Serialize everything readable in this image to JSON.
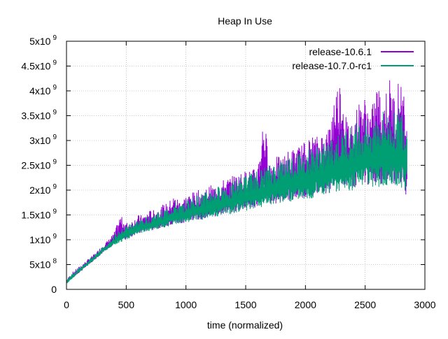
{
  "chart_data": {
    "type": "line",
    "title": "Heap In Use",
    "xlabel": "time (normalized)",
    "ylabel": "",
    "xlim": [
      0,
      3000
    ],
    "ylim": [
      0,
      5000000000
    ],
    "grid": true,
    "legend_position": "top-right",
    "x_ticks": [
      {
        "value": 0,
        "label": "0"
      },
      {
        "value": 500,
        "label": "500"
      },
      {
        "value": 1000,
        "label": "1000"
      },
      {
        "value": 1500,
        "label": "1500"
      },
      {
        "value": 2000,
        "label": "2000"
      },
      {
        "value": 2500,
        "label": "2500"
      },
      {
        "value": 3000,
        "label": "3000"
      }
    ],
    "y_ticks": [
      {
        "value": 0,
        "base": "0",
        "exp": ""
      },
      {
        "value": 500000000,
        "base": "5x10",
        "exp": "8"
      },
      {
        "value": 1000000000,
        "base": "1x10",
        "exp": "9"
      },
      {
        "value": 1500000000,
        "base": "1.5x10",
        "exp": "9"
      },
      {
        "value": 2000000000,
        "base": "2x10",
        "exp": "9"
      },
      {
        "value": 2500000000,
        "base": "2.5x10",
        "exp": "9"
      },
      {
        "value": 3000000000,
        "base": "3x10",
        "exp": "9"
      },
      {
        "value": 3500000000,
        "base": "3.5x10",
        "exp": "9"
      },
      {
        "value": 4000000000,
        "base": "4x10",
        "exp": "9"
      },
      {
        "value": 4500000000,
        "base": "4.5x10",
        "exp": "9"
      },
      {
        "value": 5000000000,
        "base": "5x10",
        "exp": "9"
      }
    ],
    "series": [
      {
        "name": "release-10.6.1",
        "color": "#9400d3",
        "x": [
          0,
          50,
          100,
          150,
          200,
          250,
          300,
          350,
          400,
          450,
          500,
          550,
          600,
          650,
          700,
          750,
          800,
          850,
          900,
          950,
          1000,
          1050,
          1100,
          1150,
          1200,
          1250,
          1300,
          1350,
          1400,
          1450,
          1500,
          1550,
          1600,
          1650,
          1700,
          1750,
          1800,
          1850,
          1900,
          1950,
          2000,
          2050,
          2100,
          2150,
          2200,
          2250,
          2300,
          2350,
          2400,
          2450,
          2500,
          2550,
          2600,
          2650,
          2700,
          2750,
          2800,
          2850
        ],
        "y_low": [
          100000000,
          200000000,
          300000000,
          400000000,
          500000000,
          600000000,
          700000000,
          800000000,
          850000000,
          900000000,
          950000000,
          1000000000,
          1050000000,
          1100000000,
          1100000000,
          1150000000,
          1150000000,
          1200000000,
          1200000000,
          1250000000,
          1250000000,
          1300000000,
          1300000000,
          1300000000,
          1350000000,
          1350000000,
          1400000000,
          1400000000,
          1400000000,
          1450000000,
          1450000000,
          1500000000,
          1500000000,
          1500000000,
          1550000000,
          1550000000,
          1600000000,
          1600000000,
          1600000000,
          1650000000,
          1650000000,
          1650000000,
          1700000000,
          1700000000,
          1700000000,
          1700000000,
          1750000000,
          1750000000,
          1750000000,
          1750000000,
          1800000000,
          1800000000,
          1800000000,
          1800000000,
          1850000000,
          1800000000,
          1700000000,
          1600000000
        ],
        "y_high": [
          200000000,
          350000000,
          450000000,
          550000000,
          650000000,
          750000000,
          900000000,
          1000000000,
          1150000000,
          1500000000,
          1350000000,
          1400000000,
          1500000000,
          1500000000,
          1600000000,
          1600000000,
          1700000000,
          1750000000,
          1900000000,
          1800000000,
          1900000000,
          1950000000,
          2000000000,
          2000000000,
          2100000000,
          2100000000,
          2200000000,
          2250000000,
          2300000000,
          2350000000,
          2400000000,
          2400000000,
          2500000000,
          3550000000,
          2600000000,
          2700000000,
          2650000000,
          2800000000,
          2850000000,
          2900000000,
          3000000000,
          3100000000,
          3100000000,
          3200000000,
          3300000000,
          4100000000,
          4300000000,
          3400000000,
          3500000000,
          3800000000,
          3900000000,
          3600000000,
          4200000000,
          3800000000,
          4300000000,
          3900000000,
          4500000000,
          3300000000
        ]
      },
      {
        "name": "release-10.7.0-rc1",
        "color": "#009e73",
        "x": [
          0,
          50,
          100,
          150,
          200,
          250,
          300,
          350,
          400,
          450,
          500,
          550,
          600,
          650,
          700,
          750,
          800,
          850,
          900,
          950,
          1000,
          1050,
          1100,
          1150,
          1200,
          1250,
          1300,
          1350,
          1400,
          1450,
          1500,
          1550,
          1600,
          1650,
          1700,
          1750,
          1800,
          1850,
          1900,
          1950,
          2000,
          2050,
          2100,
          2150,
          2200,
          2250,
          2300,
          2350,
          2400,
          2450,
          2500,
          2550,
          2600,
          2650,
          2700,
          2750,
          2800,
          2850
        ],
        "y_low": [
          100000000,
          200000000,
          300000000,
          400000000,
          500000000,
          600000000,
          700000000,
          800000000,
          850000000,
          900000000,
          950000000,
          1000000000,
          1050000000,
          1100000000,
          1100000000,
          1150000000,
          1150000000,
          1200000000,
          1200000000,
          1250000000,
          1250000000,
          1300000000,
          1300000000,
          1300000000,
          1350000000,
          1350000000,
          1400000000,
          1400000000,
          1400000000,
          1450000000,
          1450000000,
          1500000000,
          1500000000,
          1500000000,
          1550000000,
          1550000000,
          1600000000,
          1600000000,
          1600000000,
          1650000000,
          1650000000,
          1650000000,
          1700000000,
          1700000000,
          1700000000,
          1700000000,
          1750000000,
          1750000000,
          1750000000,
          1750000000,
          1800000000,
          1800000000,
          1800000000,
          1800000000,
          1850000000,
          1800000000,
          1750000000,
          1700000000
        ],
        "y_high": [
          180000000,
          330000000,
          430000000,
          530000000,
          630000000,
          730000000,
          850000000,
          950000000,
          1100000000,
          1200000000,
          1300000000,
          1350000000,
          1400000000,
          1450000000,
          1500000000,
          1550000000,
          1600000000,
          1650000000,
          1750000000,
          1700000000,
          1800000000,
          1850000000,
          1900000000,
          1950000000,
          2000000000,
          2050000000,
          2100000000,
          2150000000,
          2200000000,
          2250000000,
          2300000000,
          2350000000,
          2400000000,
          2450000000,
          2500000000,
          2550000000,
          2600000000,
          2700000000,
          2700000000,
          2750000000,
          2800000000,
          2850000000,
          2900000000,
          2950000000,
          3000000000,
          3100000000,
          3200000000,
          3250000000,
          3300000000,
          3400000000,
          3450000000,
          3500000000,
          3500000000,
          3600000000,
          3500000000,
          3600000000,
          3700000000,
          3400000000
        ]
      }
    ]
  }
}
